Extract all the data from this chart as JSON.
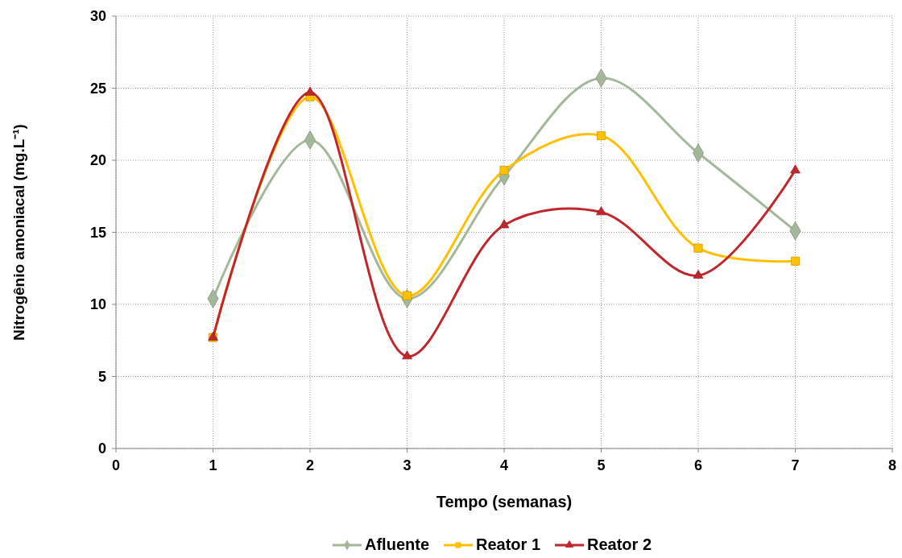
{
  "chart_data": {
    "type": "line",
    "xlabel": "Tempo (semanas)",
    "ylabel": "Nitrogênio amoniacal (mg.L⁻¹)",
    "x": [
      1,
      2,
      3,
      4,
      5,
      6,
      7
    ],
    "series": [
      {
        "name": "Afluente",
        "color": "#a3b898",
        "marker": "diamond",
        "values": [
          10.4,
          21.4,
          10.4,
          18.9,
          25.7,
          20.5,
          15.1
        ]
      },
      {
        "name": "Reator 1",
        "color": "#ffc000",
        "marker": "square",
        "values": [
          7.7,
          24.4,
          10.6,
          19.3,
          21.7,
          13.9,
          13.0
        ]
      },
      {
        "name": "Reator 2",
        "color": "#c0272d",
        "marker": "triangle",
        "values": [
          7.7,
          24.7,
          6.4,
          15.5,
          16.4,
          12.0,
          19.3
        ]
      }
    ],
    "xlim": [
      0,
      8
    ],
    "xticks": [
      0,
      1,
      2,
      3,
      4,
      5,
      6,
      7,
      8
    ],
    "ylim": [
      0,
      30
    ],
    "yticks": [
      0,
      5,
      10,
      15,
      20,
      25,
      30
    ],
    "grid": true,
    "legend": "bottom",
    "line_style": "solid"
  }
}
